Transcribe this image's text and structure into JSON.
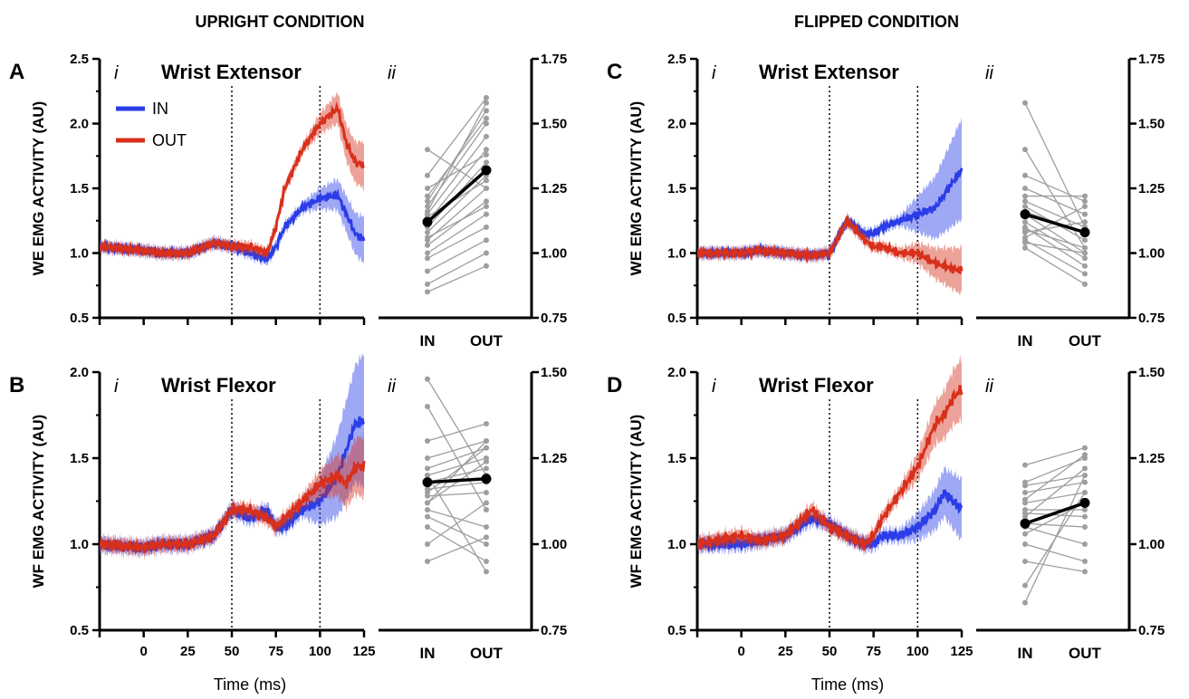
{
  "conditions": {
    "upright": "UPRIGHT CONDITION",
    "flipped": "FLIPPED CONDITION"
  },
  "colors": {
    "in": "#2b3de6",
    "out": "#d8301c",
    "paired": "#9e9e9e",
    "mean": "#000000"
  },
  "legend": {
    "in": "IN",
    "out": "OUT"
  },
  "xlabel": "Time (ms)",
  "xticks": [
    "0",
    "25",
    "50",
    "75",
    "100",
    "125"
  ],
  "cat_labels": [
    "IN",
    "OUT"
  ],
  "sub_i": "i",
  "sub_ii": "ii",
  "panels": {
    "A": {
      "letter": "A",
      "title": "Wrist Extensor",
      "ylabel": "WE EMG ACTIVITY (AU)",
      "yticks": [
        "0.5",
        "1.0",
        "1.5",
        "2.0",
        "2.5"
      ],
      "yticks2": [
        "0.75",
        "1.00",
        "1.25",
        "1.50",
        "1.75"
      ]
    },
    "B": {
      "letter": "B",
      "title": "Wrist Flexor",
      "ylabel": "WF EMG ACTIVITY (AU)",
      "yticks": [
        "0.5",
        "1.0",
        "1.5",
        "2.0"
      ],
      "yticks2": [
        "0.75",
        "1.00",
        "1.25",
        "1.50"
      ]
    },
    "C": {
      "letter": "C",
      "title": "Wrist Extensor",
      "ylabel": "WE EMG ACTIVITY (AU)",
      "yticks": [
        "0.5",
        "1.0",
        "1.5",
        "2.0",
        "2.5"
      ],
      "yticks2": [
        "0.75",
        "1.00",
        "1.25",
        "1.50",
        "1.75"
      ]
    },
    "D": {
      "letter": "D",
      "title": "Wrist Flexor",
      "ylabel": "WF EMG ACTIVITY (AU)",
      "yticks": [
        "0.5",
        "1.0",
        "1.5",
        "2.0"
      ],
      "yticks2": [
        "0.75",
        "1.00",
        "1.25",
        "1.50"
      ]
    }
  },
  "chart_data": [
    {
      "panel": "A i",
      "type": "line",
      "title": "Wrist Extensor",
      "xlabel": "Time (ms)",
      "ylabel": "WE EMG ACTIVITY (AU)",
      "xlim": [
        -25,
        125
      ],
      "ylim": [
        0.5,
        2.5
      ],
      "vlines": [
        50,
        100
      ],
      "x": [
        -25,
        0,
        10,
        25,
        40,
        50,
        60,
        70,
        75,
        80,
        90,
        100,
        110,
        115,
        120,
        125
      ],
      "series": [
        {
          "name": "IN",
          "values": [
            1.05,
            1.02,
            1.0,
            1.0,
            1.08,
            1.05,
            1.0,
            0.95,
            1.05,
            1.2,
            1.35,
            1.42,
            1.45,
            1.3,
            1.15,
            1.1
          ]
        },
        {
          "name": "OUT",
          "values": [
            1.05,
            1.02,
            1.0,
            1.0,
            1.08,
            1.05,
            1.05,
            1.0,
            1.2,
            1.5,
            1.8,
            2.0,
            2.12,
            1.85,
            1.7,
            1.68
          ]
        }
      ]
    },
    {
      "panel": "A ii",
      "type": "line",
      "categories": [
        "IN",
        "OUT"
      ],
      "ylim": [
        0.75,
        1.75
      ],
      "mean": [
        1.12,
        1.32
      ],
      "pairs": [
        [
          1.4,
          1.25
        ],
        [
          1.3,
          1.6
        ],
        [
          1.2,
          1.55
        ],
        [
          1.18,
          1.5
        ],
        [
          1.15,
          1.45
        ],
        [
          1.12,
          1.4
        ],
        [
          1.1,
          1.35
        ],
        [
          1.08,
          1.3
        ],
        [
          1.05,
          1.25
        ],
        [
          1.03,
          1.2
        ],
        [
          1.0,
          1.15
        ],
        [
          0.98,
          1.1
        ],
        [
          0.93,
          1.05
        ],
        [
          0.88,
          1.0
        ],
        [
          0.85,
          0.95
        ],
        [
          1.22,
          1.52
        ],
        [
          1.25,
          1.38
        ],
        [
          1.16,
          1.58
        ],
        [
          1.06,
          1.18
        ],
        [
          1.14,
          1.28
        ]
      ]
    },
    {
      "panel": "B i",
      "type": "line",
      "title": "Wrist Flexor",
      "xlabel": "Time (ms)",
      "ylabel": "WF EMG ACTIVITY (AU)",
      "xlim": [
        -25,
        125
      ],
      "ylim": [
        0.5,
        2.0
      ],
      "vlines": [
        50,
        100
      ],
      "x": [
        -25,
        0,
        10,
        25,
        40,
        50,
        60,
        70,
        75,
        80,
        90,
        100,
        110,
        115,
        120,
        125
      ],
      "series": [
        {
          "name": "IN",
          "values": [
            1.0,
            0.98,
            1.0,
            1.0,
            1.05,
            1.2,
            1.15,
            1.2,
            1.1,
            1.1,
            1.2,
            1.25,
            1.4,
            1.55,
            1.7,
            1.72
          ]
        },
        {
          "name": "OUT",
          "values": [
            1.0,
            0.98,
            1.0,
            1.0,
            1.05,
            1.2,
            1.2,
            1.15,
            1.1,
            1.15,
            1.25,
            1.35,
            1.4,
            1.35,
            1.45,
            1.45
          ]
        }
      ]
    },
    {
      "panel": "B ii",
      "type": "line",
      "categories": [
        "IN",
        "OUT"
      ],
      "ylim": [
        0.75,
        1.5
      ],
      "mean": [
        1.18,
        1.19
      ],
      "pairs": [
        [
          1.48,
          1.2
        ],
        [
          1.4,
          1.1
        ],
        [
          1.3,
          1.35
        ],
        [
          1.25,
          1.3
        ],
        [
          1.22,
          1.28
        ],
        [
          1.2,
          1.25
        ],
        [
          1.18,
          1.22
        ],
        [
          1.16,
          1.18
        ],
        [
          1.14,
          1.15
        ],
        [
          1.12,
          1.3
        ],
        [
          1.1,
          1.05
        ],
        [
          1.08,
          1.0
        ],
        [
          1.05,
          0.95
        ],
        [
          1.0,
          1.12
        ],
        [
          0.95,
          1.02
        ],
        [
          1.15,
          1.28
        ],
        [
          1.2,
          0.92
        ],
        [
          1.12,
          1.24
        ]
      ]
    },
    {
      "panel": "C i",
      "type": "line",
      "title": "Wrist Extensor",
      "xlabel": "Time (ms)",
      "ylabel": "WE EMG ACTIVITY (AU)",
      "xlim": [
        -25,
        125
      ],
      "ylim": [
        0.5,
        2.5
      ],
      "vlines": [
        50,
        100
      ],
      "x": [
        -25,
        0,
        10,
        25,
        40,
        50,
        60,
        70,
        75,
        80,
        90,
        100,
        110,
        115,
        120,
        125
      ],
      "series": [
        {
          "name": "IN",
          "values": [
            1.0,
            1.0,
            1.02,
            1.0,
            0.98,
            1.0,
            1.25,
            1.15,
            1.15,
            1.2,
            1.25,
            1.3,
            1.35,
            1.45,
            1.55,
            1.65
          ]
        },
        {
          "name": "OUT",
          "values": [
            1.0,
            1.0,
            1.02,
            1.0,
            0.98,
            1.0,
            1.25,
            1.1,
            1.05,
            1.05,
            1.0,
            1.0,
            0.92,
            0.9,
            0.88,
            0.86
          ]
        }
      ]
    },
    {
      "panel": "C ii",
      "type": "line",
      "categories": [
        "IN",
        "OUT"
      ],
      "ylim": [
        0.75,
        1.75
      ],
      "mean": [
        1.15,
        1.08
      ],
      "pairs": [
        [
          1.58,
          1.1
        ],
        [
          1.4,
          1.02
        ],
        [
          1.3,
          1.2
        ],
        [
          1.25,
          1.15
        ],
        [
          1.2,
          1.1
        ],
        [
          1.18,
          1.05
        ],
        [
          1.15,
          1.0
        ],
        [
          1.12,
          0.98
        ],
        [
          1.1,
          0.95
        ],
        [
          1.08,
          1.12
        ],
        [
          1.06,
          1.18
        ],
        [
          1.05,
          0.92
        ],
        [
          1.04,
          1.0
        ],
        [
          1.02,
          0.88
        ],
        [
          1.22,
          1.22
        ],
        [
          1.16,
          1.08
        ],
        [
          1.09,
          1.02
        ]
      ]
    },
    {
      "panel": "D i",
      "type": "line",
      "title": "Wrist Flexor",
      "xlabel": "Time (ms)",
      "ylabel": "WF EMG ACTIVITY (AU)",
      "xlim": [
        -25,
        125
      ],
      "ylim": [
        0.5,
        2.0
      ],
      "vlines": [
        50,
        100
      ],
      "x": [
        -25,
        0,
        10,
        25,
        40,
        50,
        60,
        70,
        75,
        80,
        90,
        100,
        110,
        115,
        120,
        125
      ],
      "series": [
        {
          "name": "IN",
          "values": [
            1.0,
            1.0,
            1.02,
            1.05,
            1.15,
            1.12,
            1.05,
            1.0,
            1.0,
            1.05,
            1.05,
            1.1,
            1.2,
            1.3,
            1.25,
            1.2
          ]
        },
        {
          "name": "OUT",
          "values": [
            1.0,
            1.05,
            1.02,
            1.05,
            1.2,
            1.1,
            1.05,
            1.0,
            1.05,
            1.15,
            1.3,
            1.45,
            1.7,
            1.75,
            1.85,
            1.9
          ]
        }
      ]
    },
    {
      "panel": "D ii",
      "type": "line",
      "categories": [
        "IN",
        "OUT"
      ],
      "ylim": [
        0.75,
        1.5
      ],
      "mean": [
        1.06,
        1.12
      ],
      "pairs": [
        [
          1.23,
          1.28
        ],
        [
          1.18,
          1.25
        ],
        [
          1.17,
          1.2
        ],
        [
          1.15,
          1.18
        ],
        [
          1.12,
          1.15
        ],
        [
          1.1,
          1.1
        ],
        [
          1.08,
          1.22
        ],
        [
          1.06,
          1.05
        ],
        [
          1.05,
          1.0
        ],
        [
          1.03,
          1.12
        ],
        [
          1.0,
          0.95
        ],
        [
          0.95,
          0.92
        ],
        [
          0.88,
          1.15
        ],
        [
          0.83,
          1.2
        ],
        [
          1.13,
          1.26
        ],
        [
          1.09,
          1.08
        ]
      ]
    }
  ]
}
